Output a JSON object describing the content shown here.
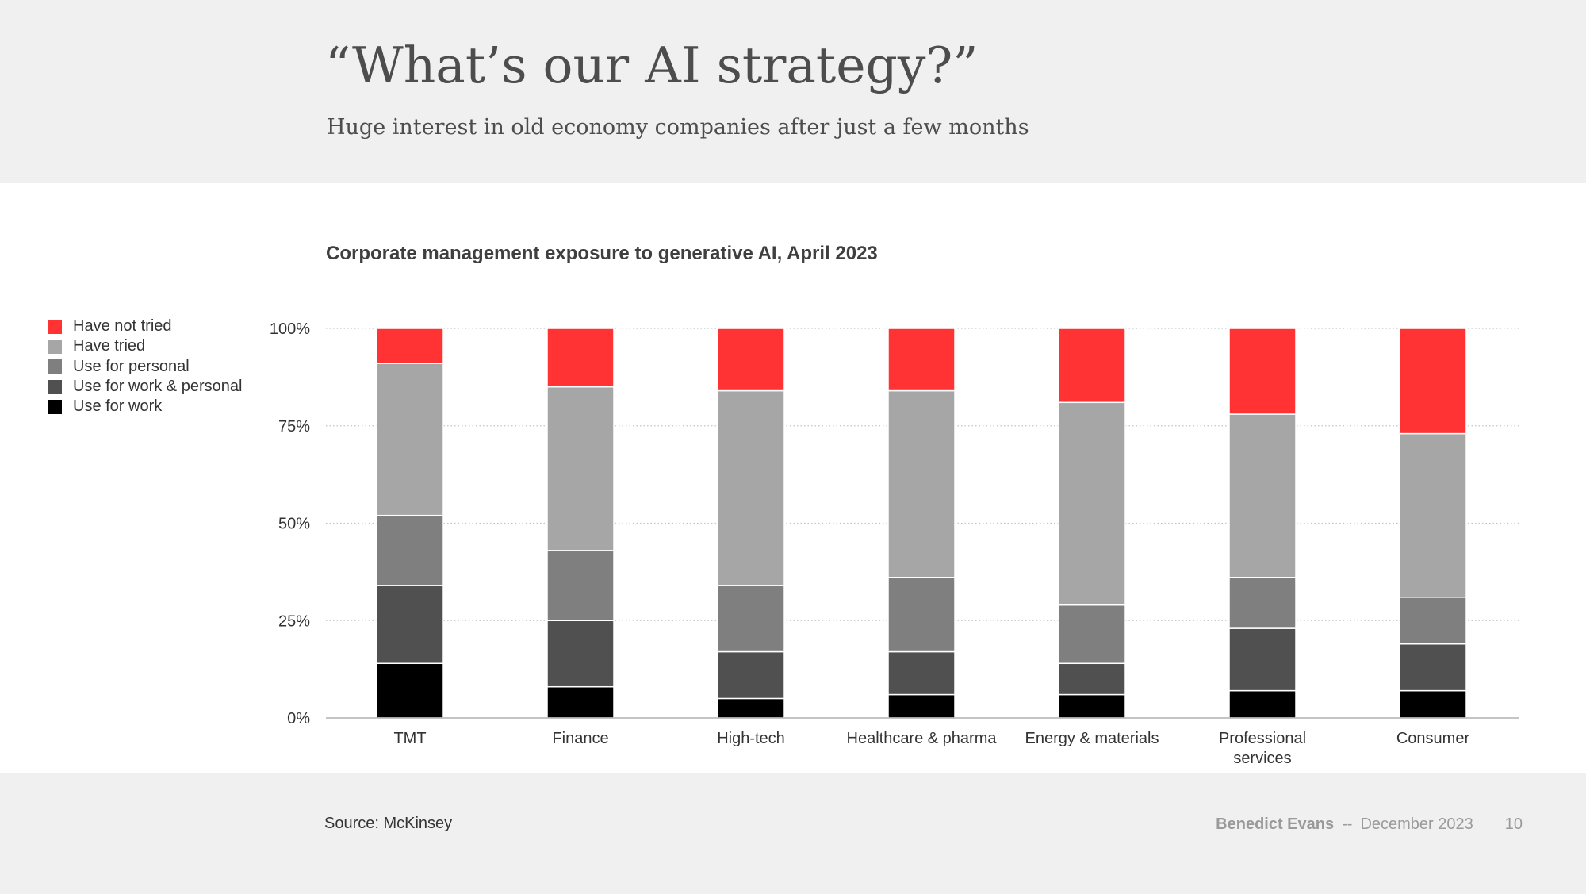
{
  "slide": {
    "title": "“What’s our AI strategy?”",
    "subtitle": "Huge interest in old economy companies after just a few months"
  },
  "footer": {
    "source": "Source: McKinsey",
    "author": "Benedict Evans",
    "separator": "--",
    "date": "December 2023",
    "page": "10"
  },
  "colors": {
    "use_for_work": "#000000",
    "use_for_work_and_personal": "#505050",
    "use_for_personal": "#7f7f7f",
    "have_tried": "#a6a6a6",
    "have_not_tried": "#ff3333"
  },
  "chart_data": {
    "type": "bar",
    "stacked": true,
    "title": "Corporate management exposure to generative AI, April 2023",
    "xlabel": "",
    "ylabel": "",
    "ylim": [
      0,
      100
    ],
    "yticks": [
      "0%",
      "25%",
      "50%",
      "75%",
      "100%"
    ],
    "ytick_values": [
      0,
      25,
      50,
      75,
      100
    ],
    "grid": true,
    "legend_position": "left",
    "categories": [
      "TMT",
      "Finance",
      "High-tech",
      "Healthcare & pharma",
      "Energy & materials",
      "Professional services",
      "Consumer"
    ],
    "category_labels": [
      [
        "TMT"
      ],
      [
        "Finance"
      ],
      [
        "High-tech"
      ],
      [
        "Healthcare & pharma"
      ],
      [
        "Energy & materials"
      ],
      [
        "Professional",
        "services"
      ],
      [
        "Consumer"
      ]
    ],
    "series": [
      {
        "name": "Use for work",
        "color": "#000000",
        "values": [
          14,
          8,
          5,
          6,
          6,
          7,
          7
        ]
      },
      {
        "name": "Use for work & personal",
        "color": "#505050",
        "values": [
          20,
          17,
          12,
          11,
          8,
          16,
          12
        ]
      },
      {
        "name": "Use for personal",
        "color": "#7f7f7f",
        "values": [
          18,
          18,
          17,
          19,
          15,
          13,
          12
        ]
      },
      {
        "name": "Have tried",
        "color": "#a6a6a6",
        "values": [
          39,
          42,
          50,
          48,
          52,
          42,
          42
        ]
      },
      {
        "name": "Have not tried",
        "color": "#ff3333",
        "values": [
          9,
          15,
          16,
          16,
          19,
          22,
          27
        ]
      }
    ],
    "legend_order": [
      "Have not tried",
      "Have tried",
      "Use for personal",
      "Use for work & personal",
      "Use for work"
    ]
  }
}
